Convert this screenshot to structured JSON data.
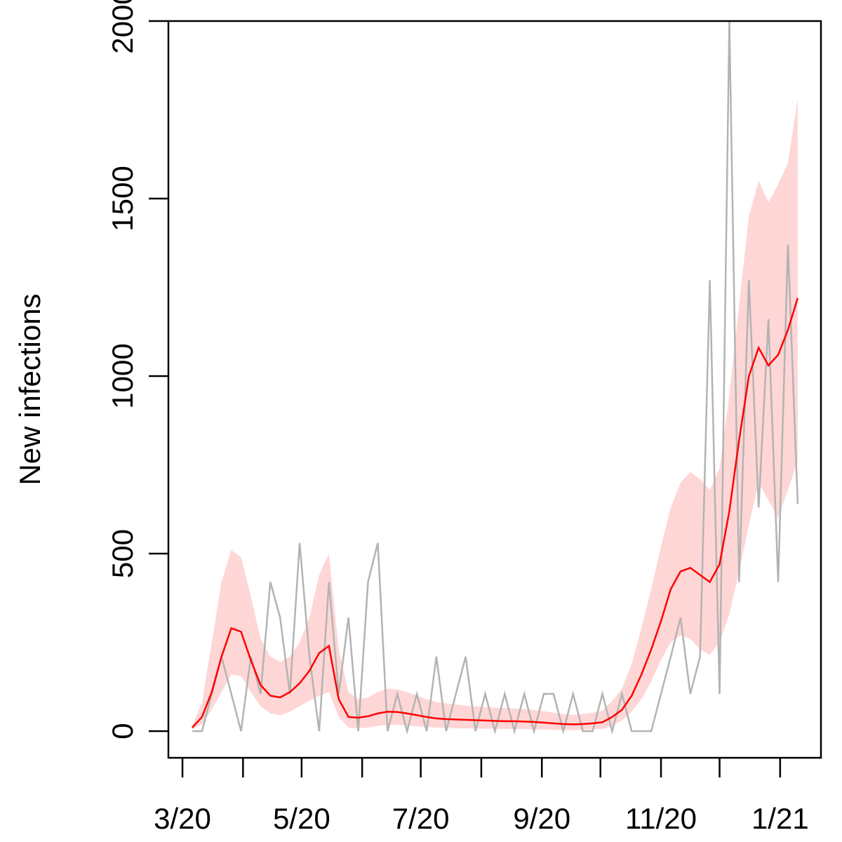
{
  "chart_data": {
    "type": "line",
    "y_label": "New infections",
    "x": [
      5,
      10,
      15,
      20,
      25,
      30,
      35,
      40,
      45,
      50,
      55,
      60,
      65,
      70,
      75,
      80,
      85,
      90,
      95,
      100,
      105,
      110,
      115,
      120,
      125,
      130,
      135,
      140,
      145,
      150,
      155,
      160,
      165,
      170,
      175,
      180,
      185,
      190,
      195,
      200,
      205,
      210,
      215,
      220,
      225,
      230,
      235,
      240,
      245,
      250,
      255,
      260,
      265,
      270,
      275,
      280,
      285,
      290,
      295,
      300,
      305,
      310,
      315
    ],
    "xlim": [
      -7.2,
      326.9
    ],
    "xticks": [
      {
        "value": 0,
        "label": "3/20"
      },
      {
        "value": 31,
        "label": null
      },
      {
        "value": 61,
        "label": "5/20"
      },
      {
        "value": 92,
        "label": null
      },
      {
        "value": 122,
        "label": "7/20"
      },
      {
        "value": 153,
        "label": null
      },
      {
        "value": 184,
        "label": "9/20"
      },
      {
        "value": 214,
        "label": null
      },
      {
        "value": 245,
        "label": "11/20"
      },
      {
        "value": 275,
        "label": null
      },
      {
        "value": 306,
        "label": "1/21"
      }
    ],
    "ylim": [
      -75,
      2000
    ],
    "yticks": [
      0,
      500,
      1000,
      1500,
      2000
    ],
    "observed": {
      "color": "#b3b3b3",
      "values": [
        0,
        0,
        105,
        210,
        105,
        0,
        210,
        105,
        420,
        320,
        105,
        530,
        210,
        0,
        420,
        105,
        320,
        0,
        420,
        530,
        0,
        105,
        0,
        105,
        0,
        210,
        0,
        105,
        210,
        0,
        105,
        0,
        105,
        0,
        105,
        0,
        105,
        105,
        0,
        105,
        0,
        0,
        105,
        0,
        105,
        0,
        0,
        0,
        105,
        210,
        320,
        105,
        210,
        1270,
        105,
        2000,
        420,
        1270,
        630,
        1160,
        420,
        1370,
        640
      ]
    },
    "band": {
      "color": "#ffd6d6",
      "upper": [
        15,
        80,
        250,
        420,
        510,
        490,
        380,
        260,
        210,
        195,
        210,
        250,
        320,
        440,
        500,
        230,
        110,
        90,
        95,
        110,
        120,
        118,
        110,
        100,
        90,
        82,
        78,
        75,
        72,
        70,
        68,
        66,
        65,
        64,
        62,
        60,
        56,
        52,
        48,
        46,
        48,
        52,
        58,
        85,
        120,
        190,
        290,
        400,
        520,
        630,
        700,
        730,
        710,
        680,
        740,
        950,
        1200,
        1450,
        1550,
        1490,
        1540,
        1600,
        1780
      ],
      "lower": [
        5,
        20,
        60,
        110,
        160,
        155,
        110,
        70,
        50,
        45,
        55,
        70,
        85,
        100,
        110,
        40,
        10,
        8,
        10,
        15,
        18,
        18,
        16,
        14,
        12,
        10,
        9,
        8,
        8,
        7,
        7,
        7,
        6,
        6,
        6,
        5,
        5,
        4,
        3,
        3,
        4,
        5,
        6,
        15,
        30,
        55,
        90,
        140,
        200,
        250,
        270,
        260,
        230,
        215,
        250,
        330,
        450,
        580,
        700,
        650,
        600,
        680,
        760
      ]
    },
    "estimate": {
      "color": "#ff0000",
      "values": [
        10,
        40,
        110,
        210,
        290,
        280,
        200,
        130,
        100,
        95,
        110,
        135,
        170,
        220,
        240,
        90,
        40,
        38,
        42,
        50,
        55,
        54,
        50,
        45,
        40,
        36,
        34,
        33,
        32,
        31,
        30,
        29,
        28,
        28,
        27,
        26,
        24,
        22,
        20,
        19,
        20,
        22,
        25,
        40,
        60,
        100,
        160,
        230,
        310,
        400,
        450,
        460,
        440,
        420,
        470,
        620,
        820,
        1000,
        1080,
        1030,
        1060,
        1130,
        1220
      ]
    }
  }
}
